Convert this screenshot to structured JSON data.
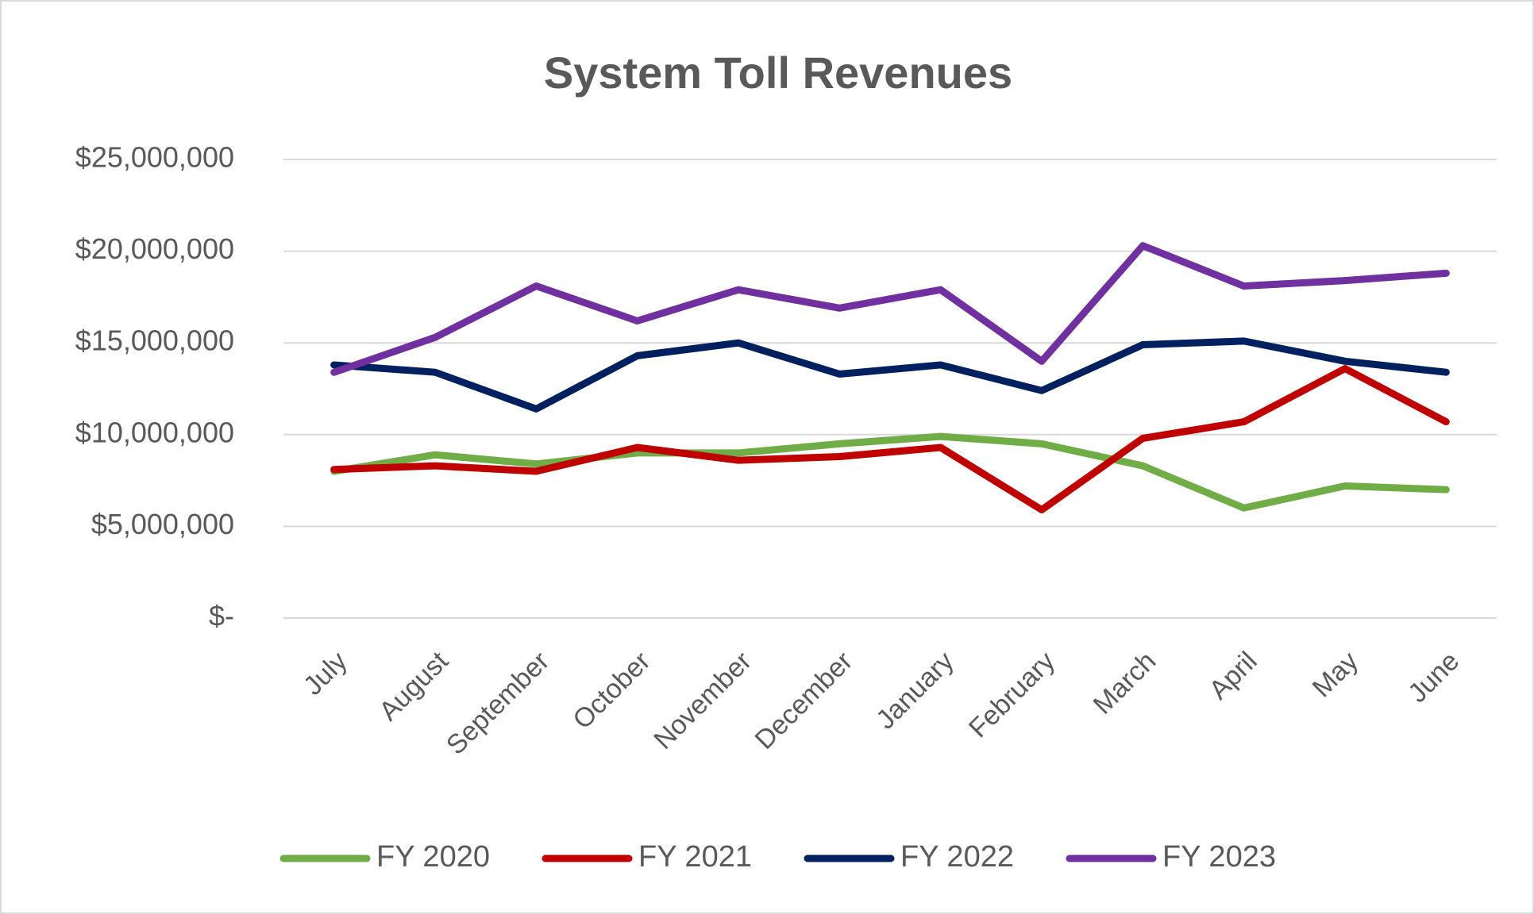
{
  "chart_data": {
    "type": "line",
    "title": "System Toll Revenues",
    "categories": [
      "July",
      "August",
      "September",
      "October",
      "November",
      "December",
      "January",
      "February",
      "March",
      "April",
      "May",
      "June"
    ],
    "series": [
      {
        "name": "FY 2020",
        "color": "#70ad47",
        "values": [
          8000000,
          8900000,
          8400000,
          9000000,
          9000000,
          9500000,
          9900000,
          9500000,
          8300000,
          6000000,
          7200000,
          7000000
        ]
      },
      {
        "name": "FY 2021",
        "color": "#c00000",
        "values": [
          8100000,
          8300000,
          8000000,
          9300000,
          8600000,
          8800000,
          9300000,
          5900000,
          9800000,
          10700000,
          13600000,
          10700000
        ]
      },
      {
        "name": "FY 2022",
        "color": "#002060",
        "values": [
          13800000,
          13400000,
          11400000,
          14300000,
          15000000,
          13300000,
          13800000,
          12400000,
          14900000,
          15100000,
          14000000,
          13400000
        ]
      },
      {
        "name": "FY 2023",
        "color": "#7030a0",
        "values": [
          13400000,
          15300000,
          18100000,
          16200000,
          17900000,
          16900000,
          17900000,
          14000000,
          20300000,
          18100000,
          18400000,
          18800000
        ]
      }
    ],
    "ylim": [
      0,
      25000000
    ],
    "yticks": [
      {
        "value": 0,
        "label": "$-"
      },
      {
        "value": 5000000,
        "label": "$5,000,000"
      },
      {
        "value": 10000000,
        "label": "$10,000,000"
      },
      {
        "value": 15000000,
        "label": "$15,000,000"
      },
      {
        "value": 20000000,
        "label": "$20,000,000"
      },
      {
        "value": 25000000,
        "label": "$25,000,000"
      }
    ],
    "grid": true,
    "legend": "bottom"
  }
}
